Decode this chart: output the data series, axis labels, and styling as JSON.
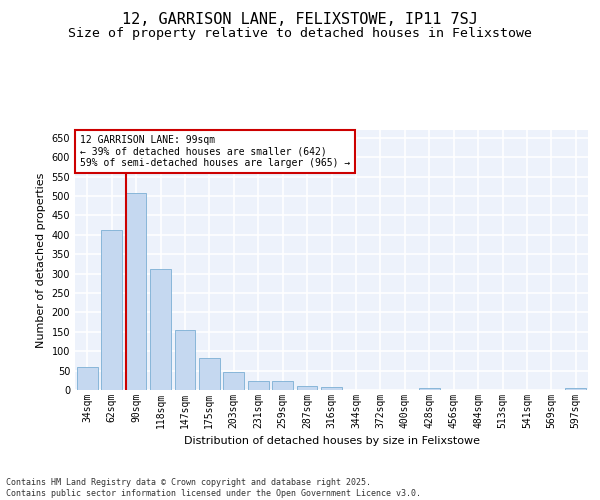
{
  "title": "12, GARRISON LANE, FELIXSTOWE, IP11 7SJ",
  "subtitle": "Size of property relative to detached houses in Felixstowe",
  "xlabel": "Distribution of detached houses by size in Felixstowe",
  "ylabel": "Number of detached properties",
  "categories": [
    "34sqm",
    "62sqm",
    "90sqm",
    "118sqm",
    "147sqm",
    "175sqm",
    "203sqm",
    "231sqm",
    "259sqm",
    "287sqm",
    "316sqm",
    "344sqm",
    "372sqm",
    "400sqm",
    "428sqm",
    "456sqm",
    "484sqm",
    "513sqm",
    "541sqm",
    "569sqm",
    "597sqm"
  ],
  "values": [
    60,
    412,
    507,
    312,
    155,
    82,
    46,
    23,
    24,
    11,
    7,
    0,
    0,
    0,
    4,
    0,
    0,
    0,
    0,
    0,
    5
  ],
  "bar_color": "#c5d8f0",
  "bar_edge_color": "#7bafd4",
  "red_line_color": "#cc0000",
  "red_line_x": 1.575,
  "annotation_text": "12 GARRISON LANE: 99sqm\n← 39% of detached houses are smaller (642)\n59% of semi-detached houses are larger (965) →",
  "annotation_box_color": "#ffffff",
  "annotation_box_edge": "#cc0000",
  "ylim": [
    0,
    670
  ],
  "yticks": [
    0,
    50,
    100,
    150,
    200,
    250,
    300,
    350,
    400,
    450,
    500,
    550,
    600,
    650
  ],
  "background_color": "#edf2fb",
  "grid_color": "#ffffff",
  "footer_text": "Contains HM Land Registry data © Crown copyright and database right 2025.\nContains public sector information licensed under the Open Government Licence v3.0.",
  "title_fontsize": 11,
  "subtitle_fontsize": 9.5,
  "label_fontsize": 8,
  "tick_fontsize": 7,
  "annotation_fontsize": 7,
  "footer_fontsize": 6
}
